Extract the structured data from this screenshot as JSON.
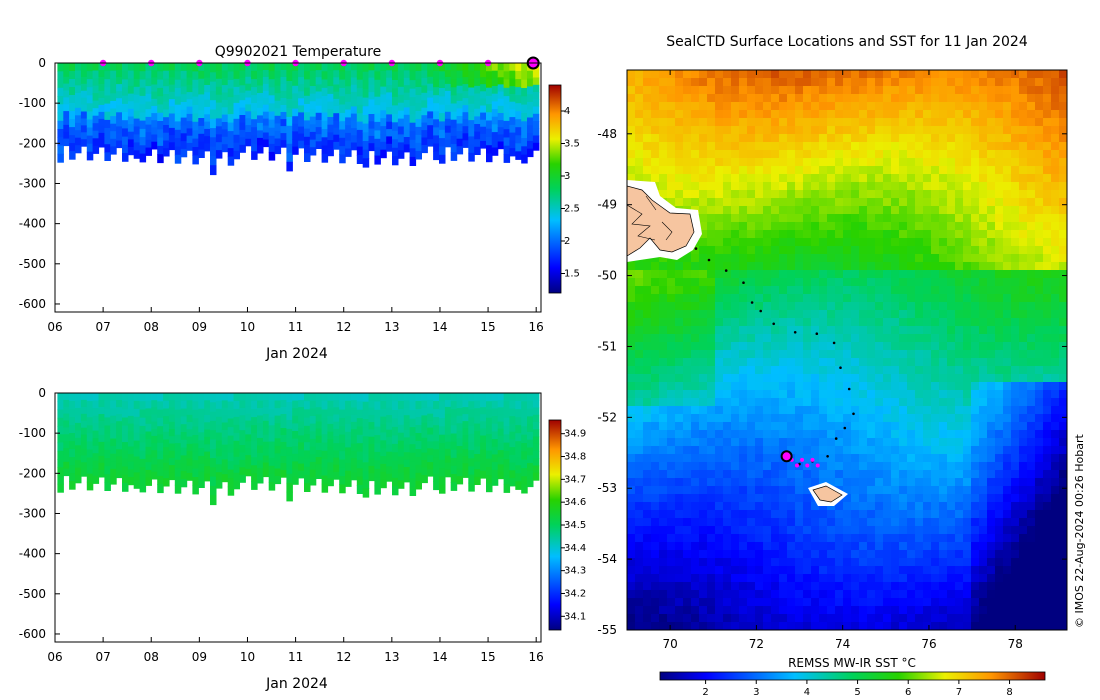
{
  "chart_data": [
    {
      "type": "heatmap",
      "id": "temp",
      "title": "Q9902021  Temperature",
      "xlabel": "Jan 2024",
      "ylabel": "",
      "x_ticks": [
        "06",
        "07",
        "08",
        "09",
        "10",
        "11",
        "12",
        "13",
        "14",
        "15",
        "16"
      ],
      "y_ticks": [
        "0",
        "-100",
        "-200",
        "-300",
        "-400",
        "-500",
        "-600"
      ],
      "x_range_days": [
        6.0,
        16.1
      ],
      "y_range_m": [
        -620,
        0
      ],
      "colorbar_ticks": [
        "1.5",
        "2",
        "2.5",
        "3",
        "3.5",
        "4"
      ],
      "colorbar_range": [
        1.2,
        4.4
      ],
      "marker_days": [
        7,
        8,
        9,
        10,
        11,
        12,
        13,
        14,
        15
      ],
      "current_marker_day": 16
    },
    {
      "type": "heatmap",
      "id": "salt",
      "title": "",
      "xlabel": "Jan 2024",
      "ylabel": "",
      "x_ticks": [
        "06",
        "07",
        "08",
        "09",
        "10",
        "11",
        "12",
        "13",
        "14",
        "15",
        "16"
      ],
      "y_ticks": [
        "0",
        "-100",
        "-200",
        "-300",
        "-400",
        "-500",
        "-600"
      ],
      "x_range_days": [
        6.0,
        16.1
      ],
      "y_range_m": [
        -620,
        0
      ],
      "colorbar_ticks": [
        "34.1",
        "34.2",
        "34.3",
        "34.4",
        "34.5",
        "34.6",
        "34.7",
        "34.8",
        "34.9"
      ],
      "colorbar_range": [
        34.04,
        34.96
      ]
    },
    {
      "type": "heatmap",
      "id": "map",
      "title": "SealCTD Surface Locations and SST for 11 Jan 2024",
      "xlabel": "REMSS MW-IR SST °C",
      "x_ticks": [
        "70",
        "72",
        "74",
        "76",
        "78"
      ],
      "x_range_lon": [
        69.0,
        79.2
      ],
      "y_ticks": [
        "-48",
        "-49",
        "-50",
        "-51",
        "-52",
        "-53",
        "-54",
        "-55"
      ],
      "y_range_lat": [
        -55.0,
        -47.1
      ],
      "colorbar_ticks": [
        "2",
        "3",
        "4",
        "5",
        "6",
        "7",
        "8"
      ],
      "colorbar_range": [
        1.1,
        8.7
      ],
      "track_lonlat": [
        [
          70.6,
          -49.62
        ],
        [
          70.9,
          -49.78
        ],
        [
          71.3,
          -49.93
        ],
        [
          71.7,
          -50.1
        ],
        [
          71.9,
          -50.38
        ],
        [
          72.1,
          -50.5
        ],
        [
          72.4,
          -50.68
        ],
        [
          72.9,
          -50.8
        ],
        [
          73.4,
          -50.82
        ],
        [
          73.8,
          -50.95
        ],
        [
          73.95,
          -51.3
        ],
        [
          74.15,
          -51.6
        ],
        [
          74.25,
          -51.95
        ],
        [
          74.05,
          -52.15
        ],
        [
          73.85,
          -52.3
        ],
        [
          73.65,
          -52.55
        ],
        [
          73.3,
          -52.62
        ],
        [
          73.0,
          -52.66
        ],
        [
          72.75,
          -52.55
        ]
      ],
      "current_position": [
        72.7,
        -52.55
      ],
      "copyright": "© IMOS 22-Aug-2024 00:26 Hobart"
    }
  ]
}
